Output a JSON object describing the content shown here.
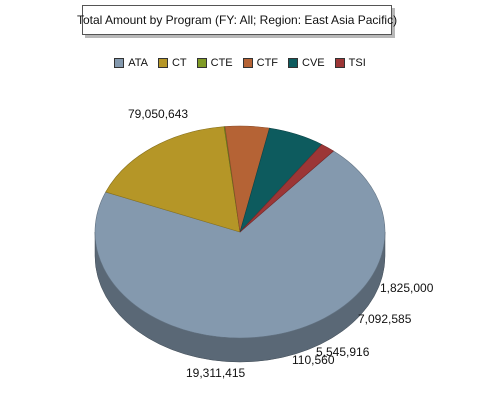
{
  "chart_data": {
    "type": "pie",
    "title": "Total Amount by Program (FY: All; Region: East Asia Pacific)",
    "legend_position": "top",
    "series": [
      {
        "name": "ATA",
        "value": 79050643,
        "label": "79,050,643",
        "color": "#8499ae"
      },
      {
        "name": "CT",
        "value": 19311415,
        "label": "19,311,415",
        "color": "#b59627"
      },
      {
        "name": "CTE",
        "value": 110560,
        "label": "110,560",
        "color": "#7f9a25"
      },
      {
        "name": "CTF",
        "value": 5545916,
        "label": "5,545,916",
        "color": "#b56335"
      },
      {
        "name": "CVE",
        "value": 7092585,
        "label": "7,092,585",
        "color": "#0d5b5e"
      },
      {
        "name": "TSI",
        "value": 1825000,
        "label": "1,825,000",
        "color": "#9c3636"
      }
    ]
  }
}
